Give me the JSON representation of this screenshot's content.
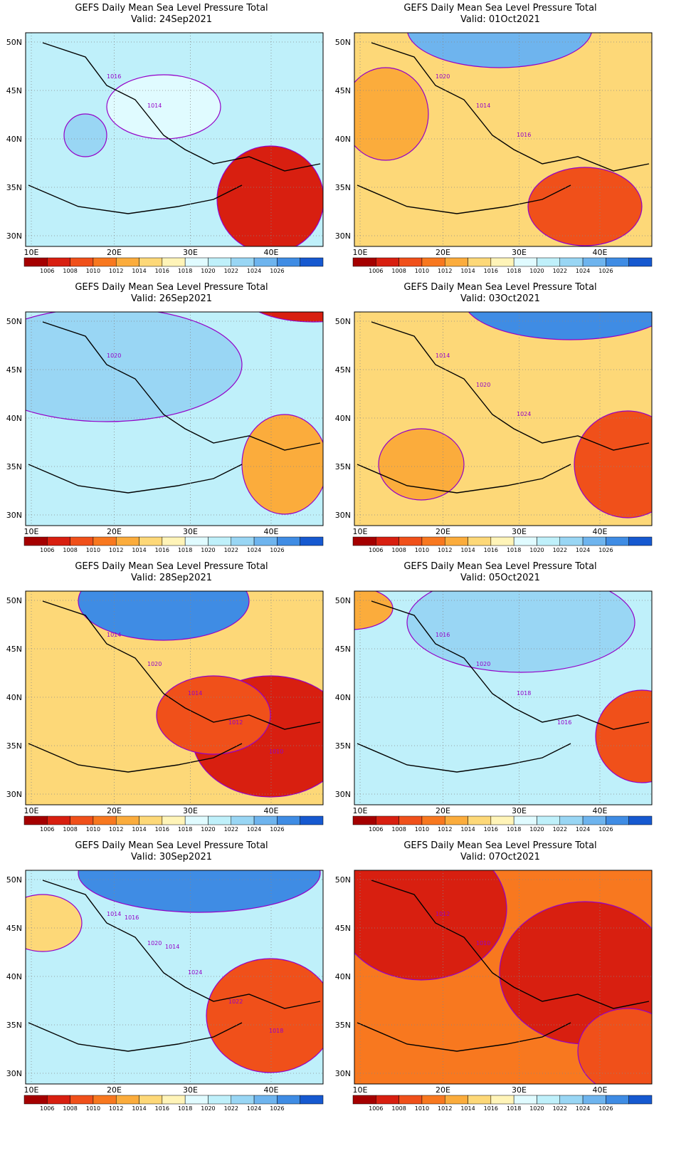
{
  "figure_title": "GEFS Daily Mean Sea Level Pressure Total",
  "valid_prefix": "Valid: ",
  "lat_labels": [
    "50N",
    "45N",
    "40N",
    "35N",
    "30N"
  ],
  "lon_labels": [
    "10E",
    "20E",
    "30E",
    "40E"
  ],
  "colorbar": {
    "levels": [
      "1006",
      "1008",
      "1010",
      "1012",
      "1014",
      "1016",
      "1018",
      "1020",
      "1022",
      "1024",
      "1026"
    ],
    "colors": [
      "#a50000",
      "#d81f10",
      "#f0501a",
      "#f8781f",
      "#fbac3c",
      "#fdd878",
      "#fff4b8",
      "#e0fbff",
      "#bff0fa",
      "#99d6f4",
      "#6eb4ee",
      "#3f8ce4",
      "#1659d0"
    ]
  },
  "panels": [
    {
      "valid": "24Sep2021",
      "labels": [
        "1016",
        "1014"
      ],
      "bg": "#bff0fa"
    },
    {
      "valid": "01Oct2021",
      "labels": [
        "1020",
        "1014",
        "1016"
      ],
      "bg": "#fdd878"
    },
    {
      "valid": "26Sep2021",
      "labels": [
        "1020"
      ],
      "bg": "#bff0fa"
    },
    {
      "valid": "03Oct2021",
      "labels": [
        "1014",
        "1020",
        "1024"
      ],
      "bg": "#fdd878"
    },
    {
      "valid": "28Sep2021",
      "labels": [
        "1014",
        "1020",
        "1014",
        "1012",
        "1010"
      ],
      "bg": "#fdd878"
    },
    {
      "valid": "05Oct2021",
      "labels": [
        "1016",
        "1020",
        "1018",
        "1016"
      ],
      "bg": "#bff0fa"
    },
    {
      "valid": "30Sep2021",
      "labels": [
        "1014",
        "1020",
        "1024",
        "1022",
        "1018",
        "1016",
        "1014"
      ],
      "bg": "#bff0fa"
    },
    {
      "valid": "07Oct2021",
      "labels": [
        "1012",
        "1010"
      ],
      "bg": "#f8781f"
    }
  ]
}
